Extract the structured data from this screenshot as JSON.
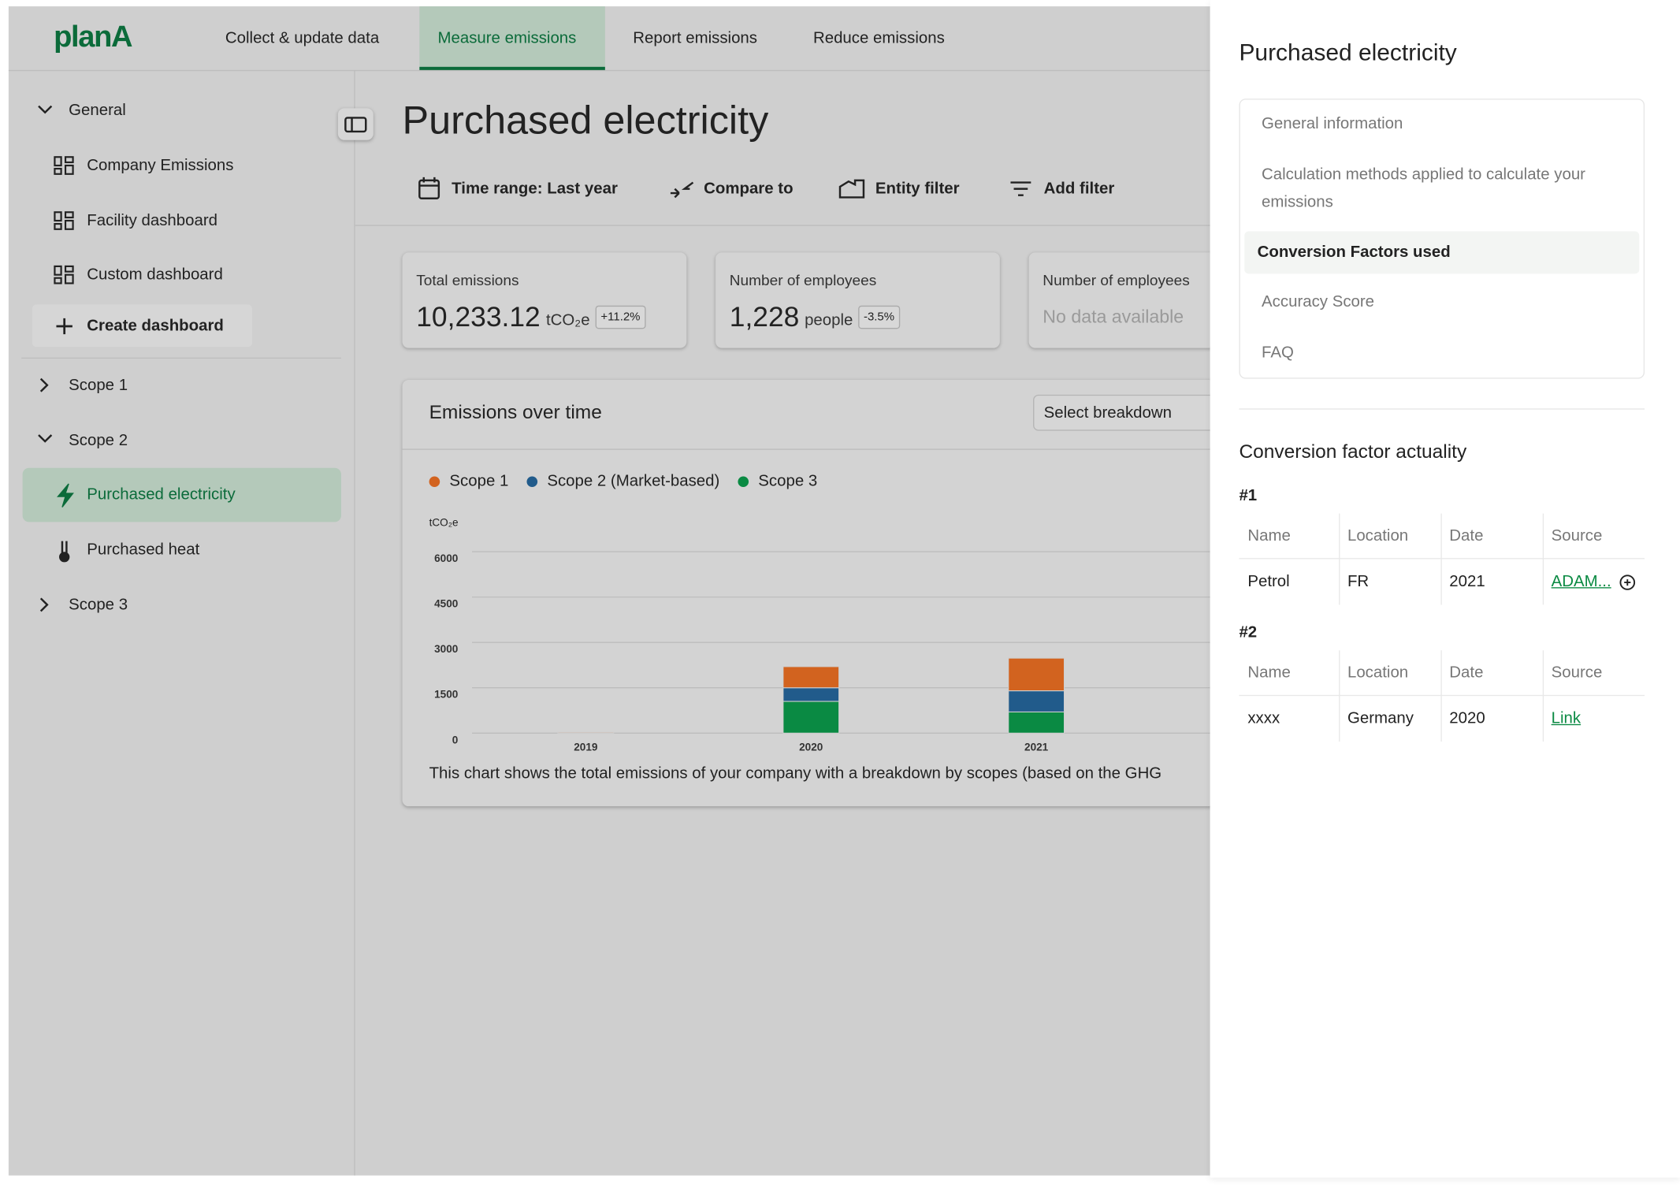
{
  "nav": {
    "logo": "planA",
    "tabs": [
      "Collect & update data",
      "Measure emissions",
      "Report emissions",
      "Reduce emissions"
    ]
  },
  "sidebar": {
    "items": [
      "General",
      "Company Emissions",
      "Facility dashboard",
      "Custom dashboard",
      "Create dashboard",
      "Scope 1",
      "Scope 2",
      "Purchased electricity",
      "Purchased heat",
      "Scope 3"
    ]
  },
  "page": {
    "title": "Purchased electricity",
    "filters": [
      "Time range: Last year",
      "Compare to",
      "Entity filter",
      "Add filter"
    ]
  },
  "kpis": [
    {
      "label": "Total emissions",
      "value": "10,233.12",
      "unit": "tCO₂e",
      "change": "+11.2%"
    },
    {
      "label": "Number of employees",
      "value": "1,228",
      "unit": "people",
      "change": "-3.5%"
    },
    {
      "label": "Number of employees",
      "value": "No data available"
    }
  ],
  "chart_card": {
    "breakdown": "Select breakdown",
    "caption": "This chart shows the total emissions of your company with a breakdown by scopes (based on the GHG"
  },
  "chart_data": {
    "type": "stacked_bar",
    "title": "Emissions over time",
    "ylabel": "tCO₂e",
    "categories": [
      "2019",
      "2020",
      "2021"
    ],
    "series": [
      {
        "name": "Scope 1",
        "color": "#d2631f",
        "values": [
          30,
          700,
          1080
        ]
      },
      {
        "name": "Scope 2 (Market-based)",
        "color": "#215b8b",
        "values": [
          0,
          450,
          700
        ]
      },
      {
        "name": "Scope 3",
        "color": "#0a8a43",
        "values": [
          0,
          1050,
          700
        ]
      }
    ],
    "ylim": [
      0,
      6000
    ],
    "yticks": [
      0,
      1500,
      3000,
      4500,
      6000
    ],
    "grid": true
  },
  "panel": {
    "title": "Purchased electricity",
    "menu": [
      "General information",
      "Calculation methods applied to calculate your emissions",
      "Conversion Factors used",
      "Accuracy Score",
      "FAQ"
    ],
    "section": "Conversion factor actuality",
    "tables": [
      {
        "label": "#1",
        "headers": [
          "Name",
          "Location",
          "Date",
          "Source"
        ],
        "rows": [
          [
            "Petrol",
            "FR",
            "2021",
            "ADAM..."
          ]
        ]
      },
      {
        "label": "#2",
        "headers": [
          "Name",
          "Location",
          "Date",
          "Source"
        ],
        "rows": [
          [
            "xxxx",
            "Germany",
            "2020",
            "Link"
          ]
        ]
      }
    ]
  }
}
